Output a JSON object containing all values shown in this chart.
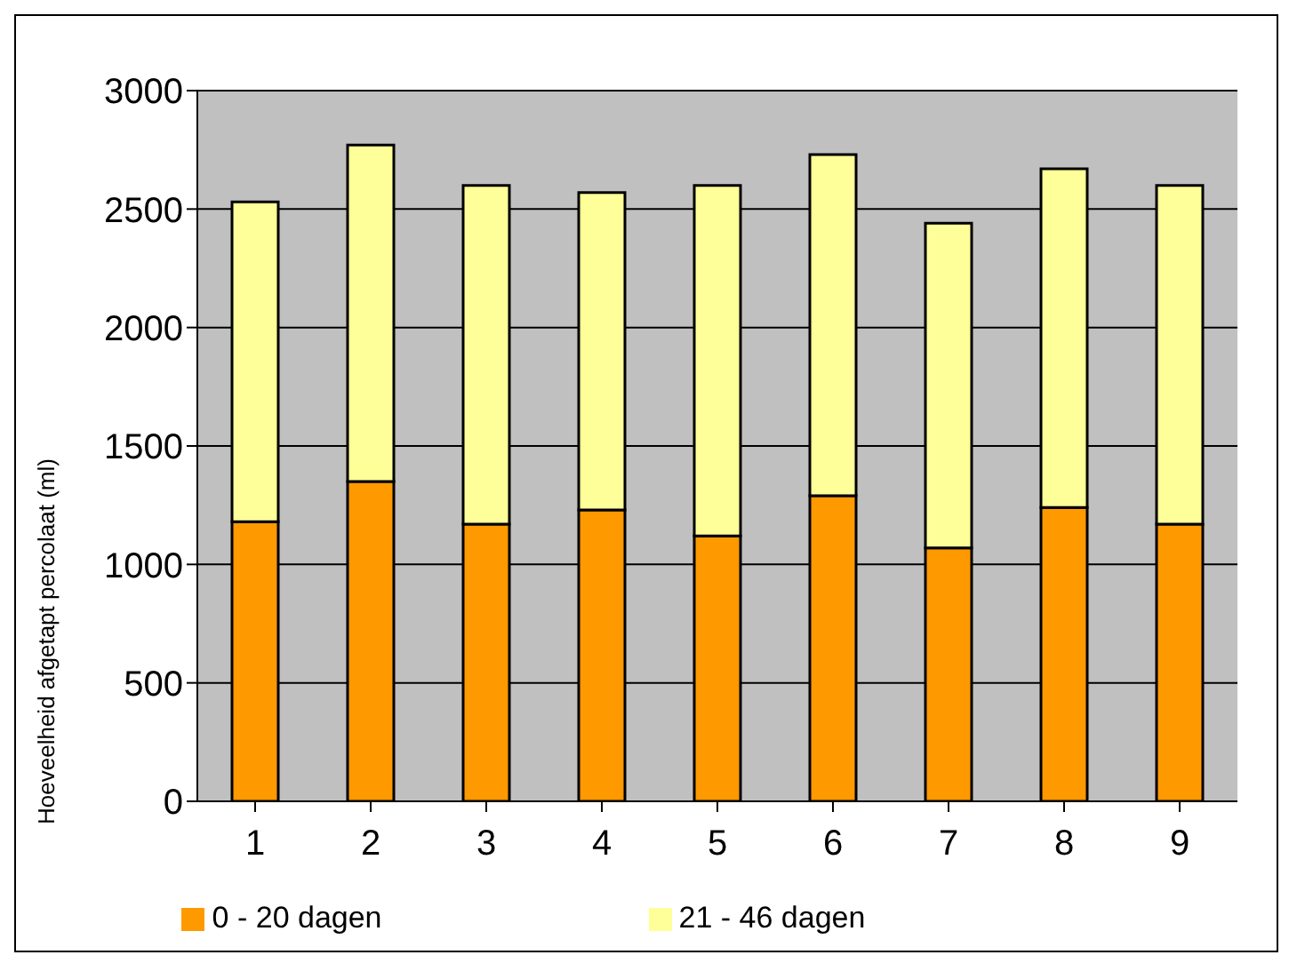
{
  "chart_data": {
    "type": "bar",
    "stacked": true,
    "ylabel": "Hoeveelheid afgetapt percolaat (ml)",
    "categories": [
      "1",
      "2",
      "3",
      "4",
      "5",
      "6",
      "7",
      "8",
      "9"
    ],
    "series": [
      {
        "name": "0 - 20 dagen",
        "color": "#ff9900",
        "values": [
          1180,
          1350,
          1170,
          1230,
          1120,
          1290,
          1070,
          1240,
          1170
        ]
      },
      {
        "name": "21 -  46 dagen",
        "color": "#ffff99",
        "values": [
          1350,
          1420,
          1430,
          1340,
          1480,
          1440,
          1370,
          1430,
          1430
        ]
      }
    ],
    "ylim": [
      0,
      3000
    ],
    "yticks": [
      0,
      500,
      1000,
      1500,
      2000,
      2500,
      3000
    ],
    "grid": "y",
    "legend": "bottom"
  }
}
